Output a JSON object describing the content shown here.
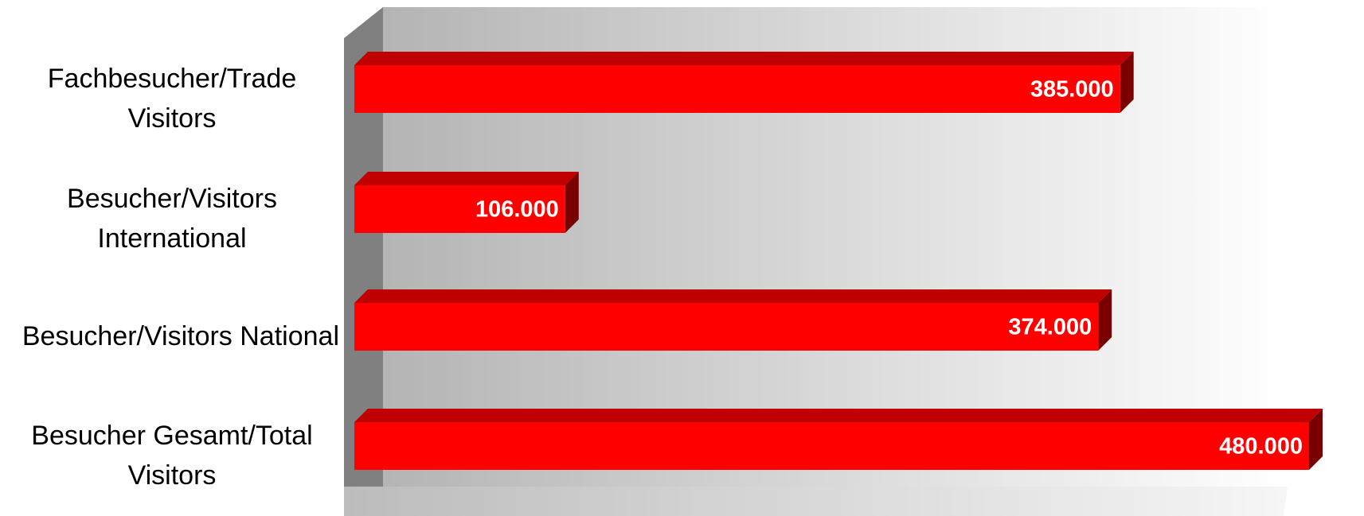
{
  "chart_data": {
    "type": "bar3d",
    "orientation": "horizontal",
    "categories": [
      "Fachbesucher/Trade Visitors",
      "Besucher/Visitors International",
      "Besucher/Visitors National",
      "Besucher Gesamt/Total Visitors"
    ],
    "values": [
      385000,
      106000,
      374000,
      480000
    ],
    "value_labels": [
      "385.000",
      "106.000",
      "374.000",
      "480.000"
    ],
    "color": "#ff0000"
  }
}
